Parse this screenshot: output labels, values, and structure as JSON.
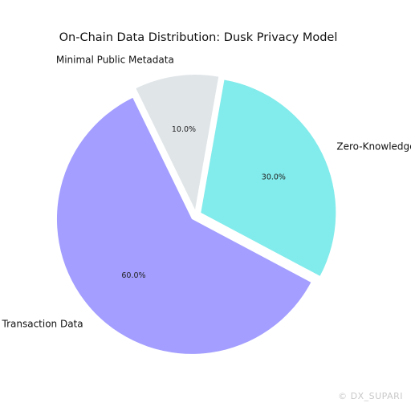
{
  "chart_data": {
    "type": "pie",
    "title": "On-Chain Data Distribution: Dusk Privacy Model",
    "categories": [
      "Zero-Knowledge Proofs",
      "Encrypted Transaction Data",
      "Minimal Public Metadata"
    ],
    "values": [
      30.0,
      60.0,
      10.0
    ],
    "value_labels": [
      "30.0%",
      "60.0%",
      "10.0%"
    ],
    "colors": [
      "#82ebeb",
      "#a39eff",
      "#e0e5e8"
    ],
    "exploded": true,
    "start_angle_deg": 80,
    "direction": "clockwise",
    "legend": "none"
  },
  "watermark": {
    "text": "© DX_SUPARI"
  }
}
